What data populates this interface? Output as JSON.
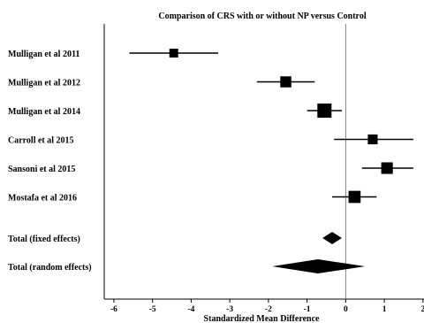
{
  "chart_data": {
    "type": "forest",
    "title": "Comparison of CRS with or without NP versus Control",
    "xlabel": "Standardized Mean Difference",
    "xlim": [
      -6.25,
      2.05
    ],
    "xticks": [
      -6,
      -5,
      -4,
      -3,
      -2,
      -1,
      0,
      1,
      2
    ],
    "xtick_labels": [
      "-6",
      "-5",
      "-4",
      "-3",
      "-2",
      "-1",
      "0",
      "1",
      "2"
    ],
    "reference_line": 0,
    "studies": [
      {
        "label": "Mulligan et al 2011",
        "smd": -4.45,
        "ci_low": -5.6,
        "ci_high": -3.3,
        "weight": 1
      },
      {
        "label": "Mulligan et al 2012",
        "smd": -1.55,
        "ci_low": -2.3,
        "ci_high": -0.8,
        "weight": 2
      },
      {
        "label": "Mulligan et al 2014",
        "smd": -0.55,
        "ci_low": -1.0,
        "ci_high": -0.1,
        "weight": 4
      },
      {
        "label": "Carroll et al 2015",
        "smd": 0.7,
        "ci_low": -0.3,
        "ci_high": 1.75,
        "weight": 1.4
      },
      {
        "label": "Sansoni et al 2015",
        "smd": 1.07,
        "ci_low": 0.42,
        "ci_high": 1.75,
        "weight": 2.3
      },
      {
        "label": "Mostafa et al 2016",
        "smd": 0.23,
        "ci_low": -0.35,
        "ci_high": 0.8,
        "weight": 2.6
      }
    ],
    "totals": [
      {
        "label": "Total (fixed effects)",
        "estimate": -0.35,
        "ci_low": -0.6,
        "ci_high": -0.1
      },
      {
        "label": "Total (random effects)",
        "estimate": -0.72,
        "ci_low": -1.9,
        "ci_high": 0.5
      }
    ]
  }
}
